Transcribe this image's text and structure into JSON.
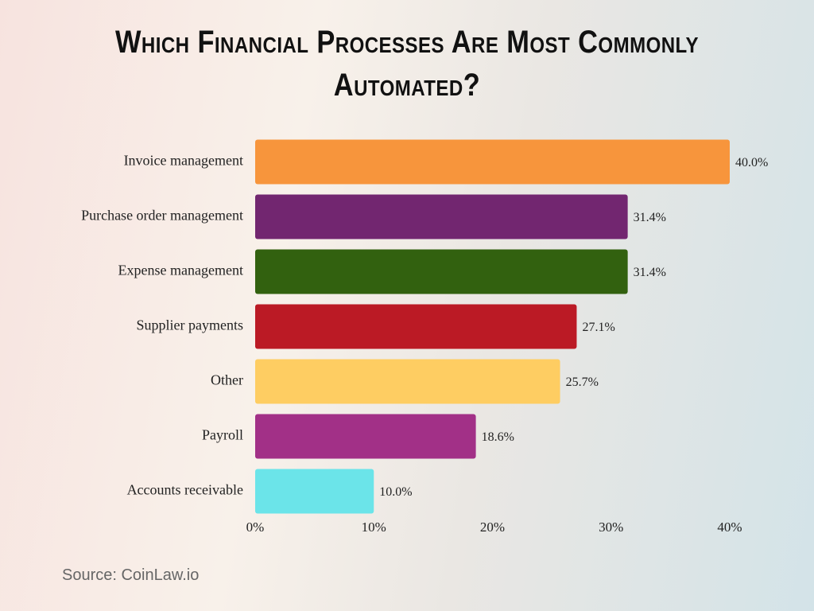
{
  "chart_data": {
    "type": "bar",
    "orientation": "horizontal",
    "title": "Which Financial Processes Are Most Commonly Automated?",
    "categories": [
      "Invoice management",
      "Purchase order management",
      "Expense management",
      "Supplier payments",
      "Other",
      "Payroll",
      "Accounts receivable"
    ],
    "values": [
      40.0,
      31.4,
      31.4,
      27.1,
      25.7,
      18.6,
      10.0
    ],
    "value_labels": [
      "40.0%",
      "31.4%",
      "31.4%",
      "27.1%",
      "25.7%",
      "18.6%",
      "10.0%"
    ],
    "colors": [
      "#f7953c",
      "#722670",
      "#32610f",
      "#bb1a25",
      "#fecd62",
      "#a23087",
      "#6be4e9"
    ],
    "xlim": [
      0,
      40
    ],
    "xticks": [
      {
        "value": 0,
        "label": "0%"
      },
      {
        "value": 10,
        "label": "10%"
      },
      {
        "value": 20,
        "label": "20%"
      },
      {
        "value": 30,
        "label": "30%"
      },
      {
        "value": 40,
        "label": "40%"
      }
    ],
    "grid": false,
    "source": "Source: CoinLaw.io"
  }
}
